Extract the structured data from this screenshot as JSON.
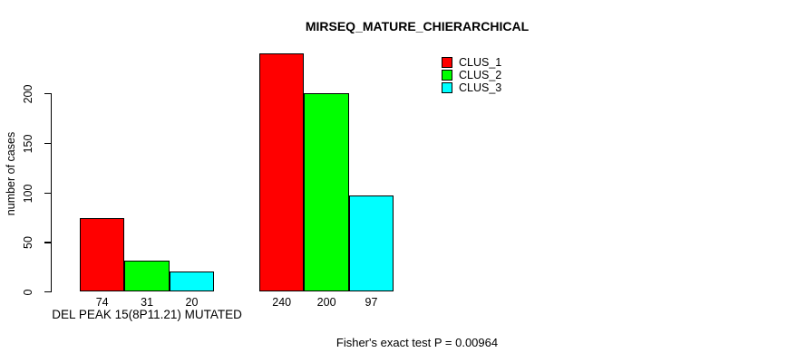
{
  "title": "MIRSEQ_MATURE_CHIERARCHICAL",
  "footer": "Fisher's exact test P = 0.00964",
  "y_axis": {
    "label": "number of cases",
    "ticks": [
      0,
      50,
      100,
      150,
      200
    ]
  },
  "legend": {
    "items": [
      {
        "label": "CLUS_1",
        "color": "#ff0000"
      },
      {
        "label": "CLUS_2",
        "color": "#00ff00"
      },
      {
        "label": "CLUS_3",
        "color": "#00ffff"
      }
    ]
  },
  "chart_data": {
    "type": "bar",
    "title": "MIRSEQ_MATURE_CHIERARCHICAL",
    "xlabel": "",
    "ylabel": "number of cases",
    "yticks": [
      0,
      50,
      100,
      150,
      200
    ],
    "ylim": [
      0,
      245
    ],
    "grid": false,
    "legend_position": "top-right",
    "categories": [
      "DEL PEAK 15(8P11.21) MUTATED",
      ""
    ],
    "series": [
      {
        "name": "CLUS_1",
        "color": "#ff0000",
        "values": [
          74,
          240
        ]
      },
      {
        "name": "CLUS_2",
        "color": "#00ff00",
        "values": [
          31,
          200
        ]
      },
      {
        "name": "CLUS_3",
        "color": "#00ffff",
        "values": [
          20,
          97
        ]
      }
    ],
    "bar_value_labels_shown": true,
    "annotation": "Fisher's exact test P = 0.00964"
  }
}
